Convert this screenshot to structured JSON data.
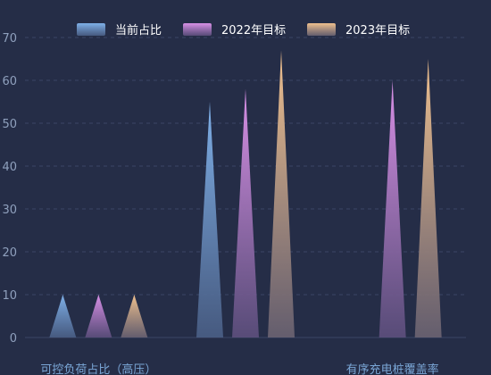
{
  "chart_data": {
    "type": "bar",
    "bar_shape": "triangle",
    "categories": [
      "可控负荷占比（高压）",
      "",
      "有序充电桩覆盖率"
    ],
    "series": [
      {
        "name": "当前占比",
        "values": [
          10,
          55,
          0
        ],
        "color_top": "#7fb0e8",
        "color_bottom": "#4a5f86"
      },
      {
        "name": "2022年目标",
        "values": [
          10,
          58,
          60
        ],
        "color_top": "#d890e6",
        "color_bottom": "#5d4f7d"
      },
      {
        "name": "2023年目标",
        "values": [
          10,
          67,
          65
        ],
        "color_top": "#efc08e",
        "color_bottom": "#6b6372"
      }
    ],
    "ylim": [
      0,
      70
    ],
    "yticks": [
      "0",
      "10",
      "20",
      "30",
      "40",
      "50",
      "60",
      "70"
    ],
    "grid": true,
    "legend_position": "top-center"
  },
  "colors": {
    "background": "#252d47",
    "grid": "#3a4566",
    "axis_text": "#8fa0bd",
    "category_text": "#7aa6d6"
  }
}
